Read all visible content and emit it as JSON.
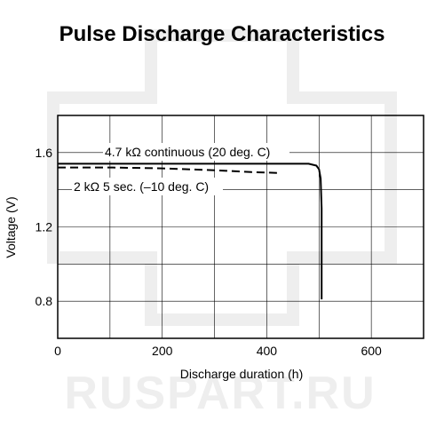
{
  "chart_data": {
    "type": "line",
    "title": "Pulse Discharge Characteristics",
    "xlabel": "Discharge duration (h)",
    "ylabel": "Voltage (V)",
    "xlim": [
      0,
      700
    ],
    "ylim": [
      0.6,
      1.8
    ],
    "x_ticks": [
      0,
      200,
      400,
      600
    ],
    "x_tick_labels": [
      "0",
      "200",
      "400",
      "600"
    ],
    "x_grid": [
      0,
      100,
      200,
      300,
      400,
      500,
      600,
      700
    ],
    "y_ticks": [
      0.8,
      1.2,
      1.6
    ],
    "y_tick_labels": [
      "0.8",
      "1.2",
      "1.6"
    ],
    "y_grid": [
      0.6,
      0.8,
      1.0,
      1.2,
      1.4,
      1.6,
      1.8
    ],
    "grid": true,
    "series": [
      {
        "name": "4.7 kΩ continuous (20 deg. C)",
        "style": "solid",
        "color": "#000000",
        "x": [
          0,
          100,
          200,
          300,
          400,
          480,
          495,
          500,
          503,
          505,
          505
        ],
        "y": [
          1.54,
          1.54,
          1.54,
          1.54,
          1.54,
          1.54,
          1.53,
          1.51,
          1.46,
          1.3,
          0.81
        ]
      },
      {
        "name": "2 kΩ 5 sec. (–10 deg. C)",
        "style": "dashed",
        "color": "#000000",
        "x": [
          0,
          100,
          200,
          300,
          370,
          425
        ],
        "y": [
          1.52,
          1.52,
          1.515,
          1.505,
          1.495,
          1.49
        ]
      }
    ]
  },
  "watermark": "RUSPART.RU"
}
